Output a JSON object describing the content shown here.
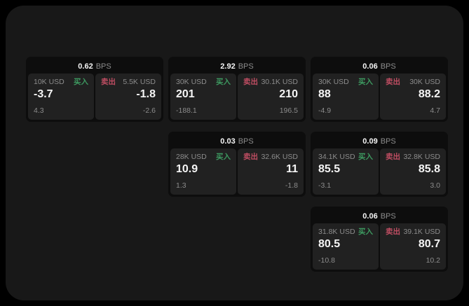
{
  "theme": {
    "outer_bg": "#000000",
    "page_bg": "#181818",
    "card_bg": "#0d0d0d",
    "panel_bg": "#212121",
    "text_primary": "#f5f5f5",
    "text_secondary": "#8c8c8c",
    "buy_color": "#3d9960",
    "sell_color": "#bf4d62"
  },
  "labels": {
    "bps_unit": "BPS",
    "buy": "买入",
    "sell": "卖出"
  },
  "cards": [
    {
      "bps": "0.62",
      "grid": {
        "col": 1,
        "row": 1
      },
      "buy": {
        "amount": "10K USD",
        "value": "-3.7",
        "delta": "4.3"
      },
      "sell": {
        "amount": "5.5K USD",
        "value": "-1.8",
        "delta": "-2.6"
      }
    },
    {
      "bps": "2.92",
      "grid": {
        "col": 2,
        "row": 1
      },
      "buy": {
        "amount": "30K USD",
        "value": "201",
        "delta": "-188.1"
      },
      "sell": {
        "amount": "30.1K USD",
        "value": "210",
        "delta": "196.5"
      }
    },
    {
      "bps": "0.06",
      "grid": {
        "col": 3,
        "row": 1
      },
      "buy": {
        "amount": "30K USD",
        "value": "88",
        "delta": "-4.9"
      },
      "sell": {
        "amount": "30K USD",
        "value": "88.2",
        "delta": "4.7"
      }
    },
    {
      "bps": "0.03",
      "grid": {
        "col": 2,
        "row": 2
      },
      "buy": {
        "amount": "28K USD",
        "value": "10.9",
        "delta": "1.3"
      },
      "sell": {
        "amount": "32.6K USD",
        "value": "11",
        "delta": "-1.8"
      }
    },
    {
      "bps": "0.09",
      "grid": {
        "col": 3,
        "row": 2
      },
      "buy": {
        "amount": "34.1K USD",
        "value": "85.5",
        "delta": "-3.1"
      },
      "sell": {
        "amount": "32.8K USD",
        "value": "85.8",
        "delta": "3.0"
      }
    },
    {
      "bps": "0.06",
      "grid": {
        "col": 3,
        "row": 3
      },
      "buy": {
        "amount": "31.8K USD",
        "value": "80.5",
        "delta": "-10.8"
      },
      "sell": {
        "amount": "39.1K USD",
        "value": "80.7",
        "delta": "10.2"
      }
    }
  ]
}
